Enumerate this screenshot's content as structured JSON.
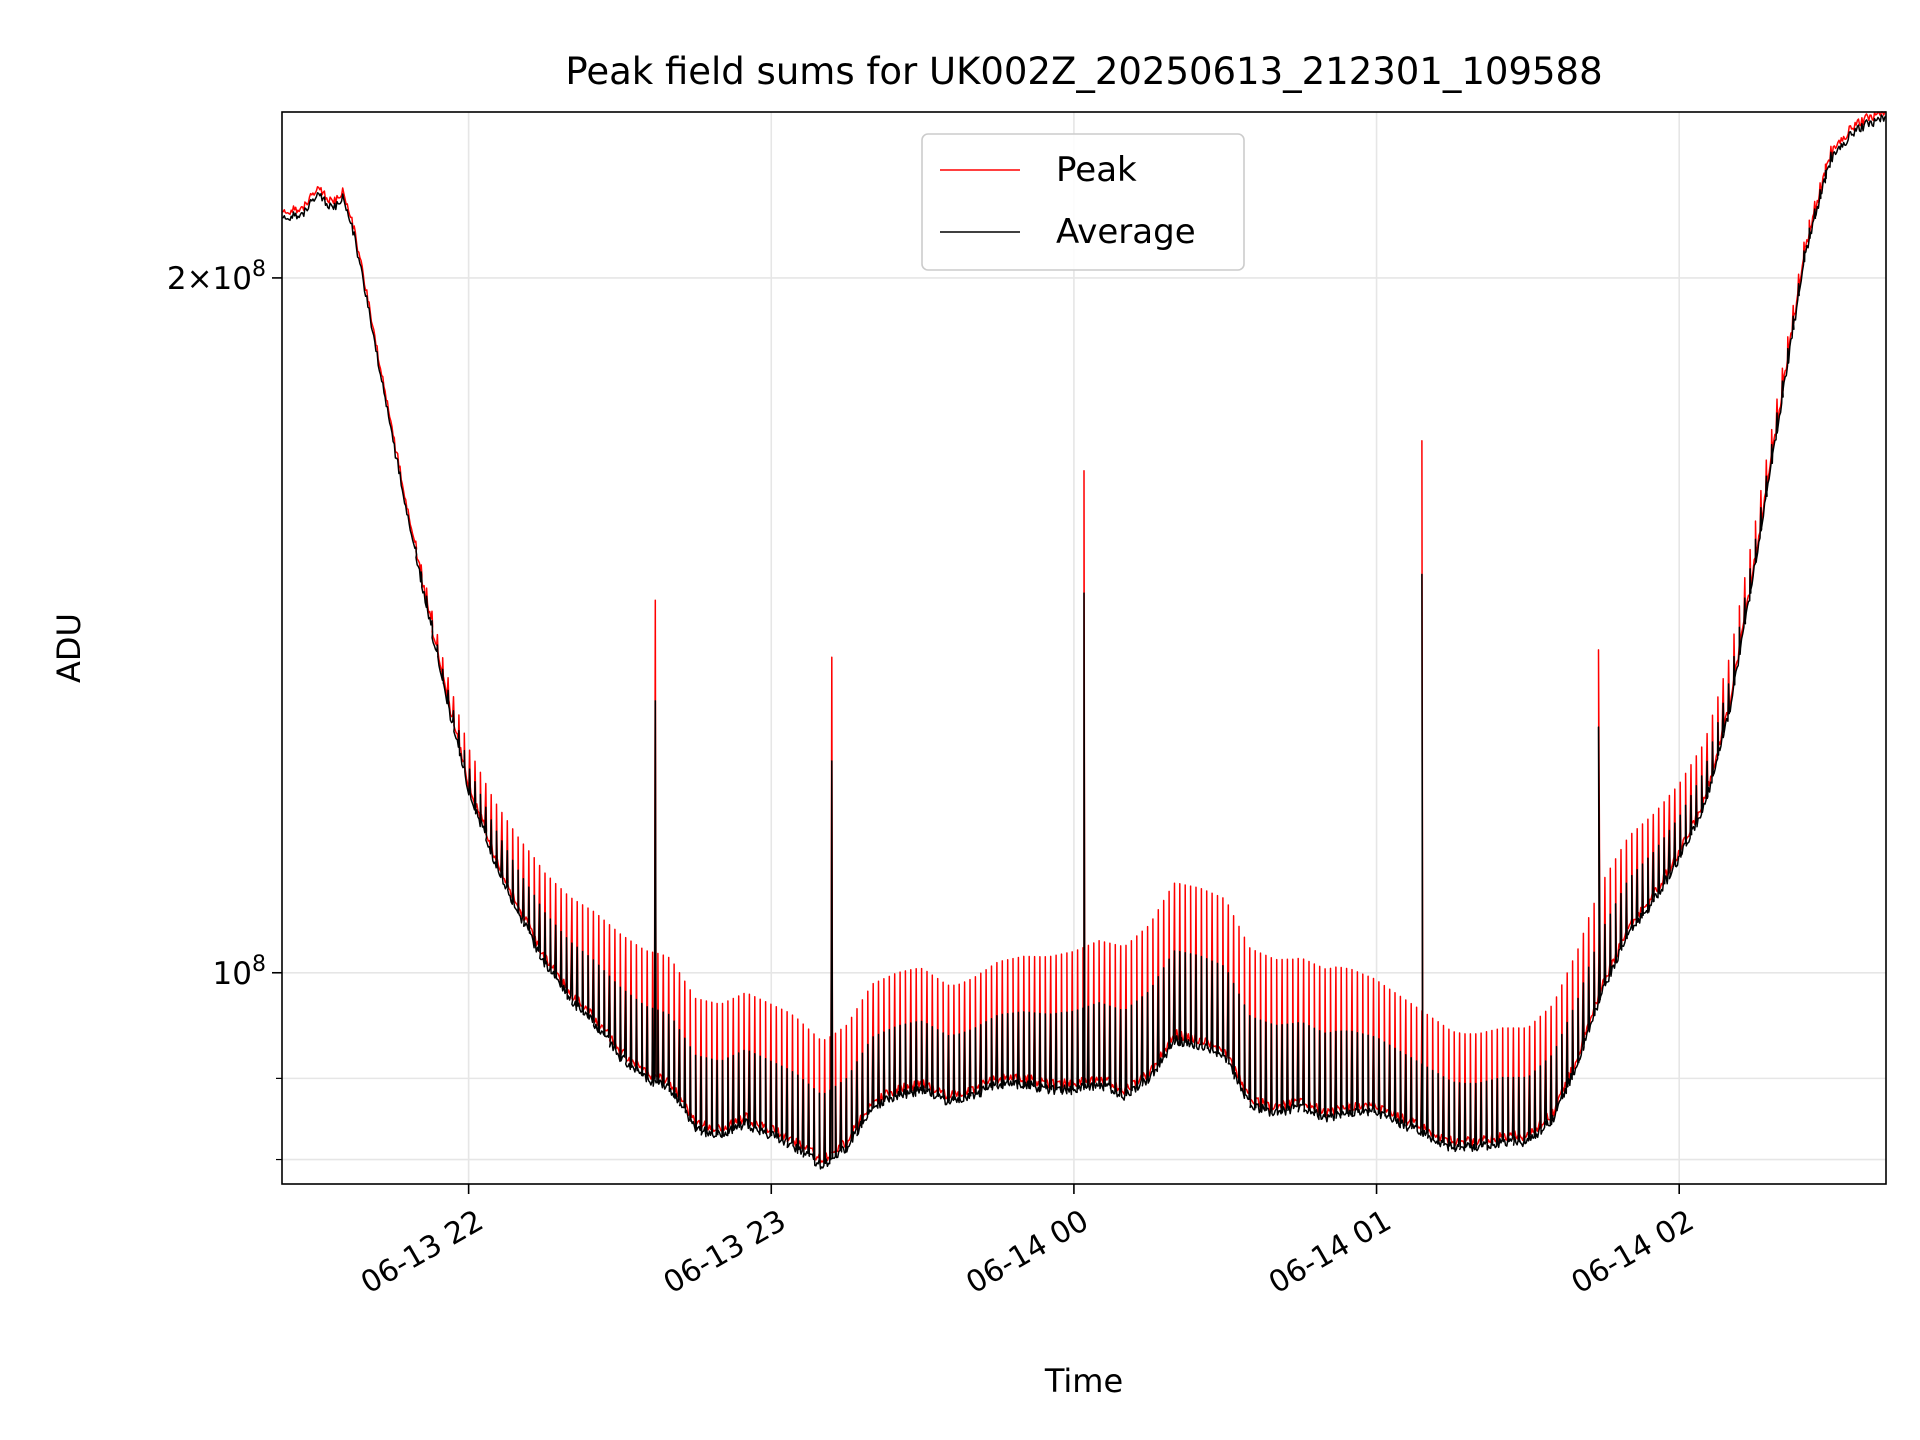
{
  "chart_data": {
    "type": "line",
    "title": "Peak field sums for UK002Z_20250613_212301_109588",
    "xlabel": "Time",
    "ylabel": "ADU",
    "yscale": "log",
    "xlim": [
      "2025-06-13 21:23",
      "2025-06-14 02:41"
    ],
    "ylim": [
      81000000,
      236000000
    ],
    "grid": true,
    "legend_position": "top-center",
    "x_ticks": [
      {
        "value": "2025-06-13 22:00",
        "label": "06-13 22"
      },
      {
        "value": "2025-06-13 23:00",
        "label": "06-13 23"
      },
      {
        "value": "2025-06-14 00:00",
        "label": "06-14 00"
      },
      {
        "value": "2025-06-14 01:00",
        "label": "06-14 01"
      },
      {
        "value": "2025-06-14 02:00",
        "label": "06-14 02"
      }
    ],
    "y_ticks_major": [
      {
        "value": 100000000,
        "base": "10",
        "exp": "8"
      },
      {
        "value": 200000000,
        "coef": "2",
        "base": "10",
        "exp": "8"
      }
    ],
    "y_ticks_minor": [
      90000000,
      83000000
    ],
    "series": [
      {
        "name": "Peak",
        "color": "#ff0000",
        "role": "peak",
        "spike_factor": [
          1.0,
          1.0,
          1.0,
          1.01,
          1.03,
          1.06,
          1.09,
          1.11,
          1.13,
          1.14,
          1.14,
          1.14,
          1.14,
          1.13,
          1.13,
          1.13,
          1.12,
          1.13,
          1.14,
          1.15,
          1.16,
          1.17,
          1.17,
          1.17,
          1.16,
          1.16,
          1.14,
          1.13,
          1.12,
          1.12,
          1.12,
          1.12,
          1.1,
          1.08,
          1.06,
          1.04,
          1.02,
          1.01,
          1.0
        ],
        "extra_spikes": [
          {
            "x": "2025-06-13 22:37",
            "y": 145000000
          },
          {
            "x": "2025-06-13 23:12",
            "y": 137000000
          },
          {
            "x": "2025-06-14 00:02",
            "y": 165000000
          },
          {
            "x": "2025-06-14 01:09",
            "y": 170000000
          },
          {
            "x": "2025-06-14 01:44",
            "y": 138000000
          }
        ]
      },
      {
        "name": "Average",
        "color": "#000000",
        "role": "average",
        "x": [
          "2025-06-13 21:23",
          "2025-06-13 21:27",
          "2025-06-13 21:30",
          "2025-06-13 21:33",
          "2025-06-13 21:35",
          "2025-06-13 21:37",
          "2025-06-13 21:40",
          "2025-06-13 21:45",
          "2025-06-13 21:50",
          "2025-06-13 21:55",
          "2025-06-13 22:00",
          "2025-06-13 22:05",
          "2025-06-13 22:10",
          "2025-06-13 22:15",
          "2025-06-13 22:20",
          "2025-06-13 22:25",
          "2025-06-13 22:30",
          "2025-06-13 22:35",
          "2025-06-13 22:40",
          "2025-06-13 22:45",
          "2025-06-13 22:50",
          "2025-06-13 22:55",
          "2025-06-13 23:00",
          "2025-06-13 23:05",
          "2025-06-13 23:10",
          "2025-06-13 23:15",
          "2025-06-13 23:20",
          "2025-06-13 23:25",
          "2025-06-13 23:30",
          "2025-06-13 23:35",
          "2025-06-13 23:40",
          "2025-06-13 23:45",
          "2025-06-13 23:50",
          "2025-06-13 23:55",
          "2025-06-14 00:00",
          "2025-06-14 00:05",
          "2025-06-14 00:10",
          "2025-06-14 00:15",
          "2025-06-14 00:20",
          "2025-06-14 00:25",
          "2025-06-14 00:30",
          "2025-06-14 00:35",
          "2025-06-14 00:40",
          "2025-06-14 00:45",
          "2025-06-14 00:50",
          "2025-06-14 00:55",
          "2025-06-14 01:00",
          "2025-06-14 01:05",
          "2025-06-14 01:10",
          "2025-06-14 01:15",
          "2025-06-14 01:20",
          "2025-06-14 01:25",
          "2025-06-14 01:30",
          "2025-06-14 01:35",
          "2025-06-14 01:40",
          "2025-06-14 01:45",
          "2025-06-14 01:50",
          "2025-06-14 01:55",
          "2025-06-14 02:00",
          "2025-06-14 02:05",
          "2025-06-14 02:10",
          "2025-06-14 02:15",
          "2025-06-14 02:20",
          "2025-06-14 02:25",
          "2025-06-14 02:30",
          "2025-06-14 02:35",
          "2025-06-14 02:41"
        ],
        "values": [
          212000000,
          213000000,
          218000000,
          214000000,
          217000000,
          210000000,
          195000000,
          170000000,
          150000000,
          133000000,
          120000000,
          112000000,
          106000000,
          101000000,
          97500000,
          95000000,
          92000000,
          90000000,
          89000000,
          85500000,
          85000000,
          86000000,
          85000000,
          84000000,
          82500000,
          84000000,
          87500000,
          88500000,
          89000000,
          88000000,
          88500000,
          89500000,
          89500000,
          89000000,
          89000000,
          89500000,
          88500000,
          90000000,
          93500000,
          93000000,
          92000000,
          87500000,
          87000000,
          87500000,
          86500000,
          87000000,
          87000000,
          86000000,
          85000000,
          84000000,
          84000000,
          84500000,
          84500000,
          86500000,
          91500000,
          98500000,
          104000000,
          107500000,
          112000000,
          118000000,
          130000000,
          150000000,
          175000000,
          205000000,
          225000000,
          232000000,
          235000000
        ]
      }
    ]
  }
}
